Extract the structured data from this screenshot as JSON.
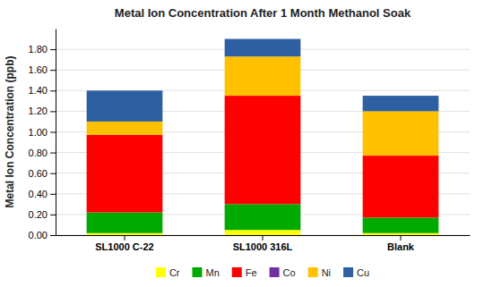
{
  "chart_data": {
    "type": "bar",
    "title": "Metal Ion Concentration After 1 Month Methanol Soak",
    "ylabel": "Metal Ion Concentration (ppb)",
    "categories": [
      "SL1000 C-22",
      "SL1000 316L",
      "Blank"
    ],
    "series": [
      {
        "name": "Cr",
        "color": "#FFFF00",
        "values": [
          0.02,
          0.05,
          0.02
        ]
      },
      {
        "name": "Mn",
        "color": "#00AA00",
        "values": [
          0.2,
          0.25,
          0.15
        ]
      },
      {
        "name": "Fe",
        "color": "#FF0000",
        "values": [
          0.75,
          1.05,
          0.6
        ]
      },
      {
        "name": "Co",
        "color": "#7030A0",
        "values": [
          0.0,
          0.0,
          0.0
        ]
      },
      {
        "name": "Ni",
        "color": "#FFC000",
        "values": [
          0.13,
          0.38,
          0.43
        ]
      },
      {
        "name": "Cu",
        "color": "#2E5FA3",
        "values": [
          0.3,
          0.17,
          0.15
        ]
      }
    ],
    "stacked": true,
    "ylim": [
      0,
      2.0
    ],
    "yticks": [
      {
        "value": 0.0,
        "label": "0.00"
      },
      {
        "value": 0.2,
        "label": "0.20"
      },
      {
        "value": 0.4,
        "label": "0.40"
      },
      {
        "value": 0.6,
        "label": "0.60"
      },
      {
        "value": 0.8,
        "label": "0.80"
      },
      {
        "value": 1.0,
        "label": "1.00"
      },
      {
        "value": 1.2,
        "label": "1.20"
      },
      {
        "value": 1.4,
        "label": "1.40"
      },
      {
        "value": 1.6,
        "label": "1.60"
      },
      {
        "value": 1.8,
        "label": "1.80"
      }
    ],
    "grid": true,
    "legend": "bottom"
  }
}
